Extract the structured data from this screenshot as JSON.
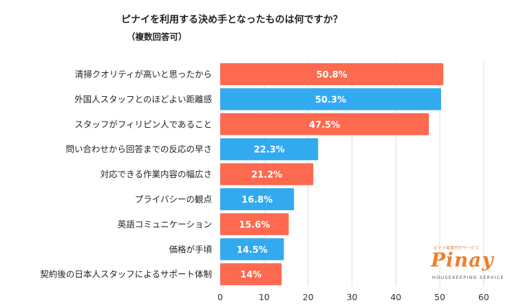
{
  "chart_data": {
    "type": "bar",
    "orientation": "horizontal",
    "title": "ピナイを利用する決め手となったものは何ですか？",
    "subtitle": "（複数回答可）",
    "categories": [
      "清掃クオリティが高いと思ったから",
      "外国人スタッフとのほどよい距離感",
      "スタッフがフィリピン人であること",
      "問い合わせから回答までの反応の早さ",
      "対応できる作業内容の幅広さ",
      "プライバシーの観点",
      "英語コミュニケーション",
      "価格が手頃",
      "契約後の日本人スタッフによるサポート体制"
    ],
    "values": [
      50.8,
      50.3,
      47.5,
      22.3,
      21.2,
      16.8,
      15.6,
      14.5,
      14
    ],
    "labels": [
      "50.8%",
      "50.3%",
      "47.5%",
      "22.3%",
      "21.2%",
      "16.8%",
      "15.6%",
      "14.5%",
      "14%"
    ],
    "xlim": [
      0,
      60
    ],
    "xticks": [
      "0",
      "10",
      "20",
      "30",
      "40",
      "50",
      "60"
    ],
    "grid": true,
    "colors": [
      "#fd6a4f",
      "#33aaf0"
    ]
  },
  "logo": {
    "tagline": "ピナイ家事代行サービス",
    "name": "Pinay",
    "sub": "HOUSEKEEPING SERVICE"
  }
}
